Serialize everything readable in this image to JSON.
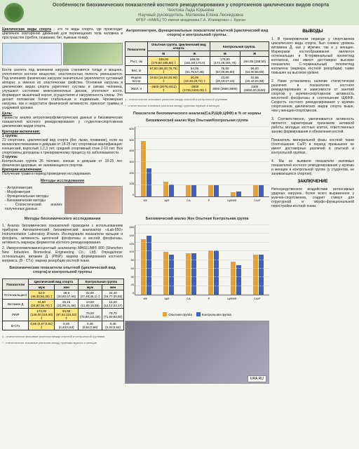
{
  "header": {
    "title": "Особенности биохимических показателей костного ремоделирования у спортсменов циклических видов спорта",
    "author_line": "Чехлова Лада Юрьевна",
    "supervisor": "Научный руководитель: Матвеева Елена Леонидовна",
    "affiliation": "ФГБУ «НМИЦ ТО имени академика Г.А. Илизарова» г. Курган"
  },
  "intro": {
    "def_title": "Циклические виды спорта",
    "def_text": " - это те виды спорта, где происходит цикличное повторение движений для перемещения тела человека в пространстве (гребля, плавание, бег, лыжные гонки).",
    "bone_text": "Кости скелета под влиянием нагрузок становятся толще и мощнее, уплотняется костное вещество, эластичностью полость уменьшается. Под влиянием физических нагрузок значительно укрепляется суставный аппарат, а именно их эластические свойства. Основная нагрузка в циклических видах спорта укрепляют суставы и связки человека, улучшают состояние межпозвоночных дисков, уплотняют кости, формируют мышечный корсет, осуществляя и нагруженность спины. Это делает положение более стабильным и подвижным. Чрезмерная нагрузка, как и недостаток физической активности, приносит травмы и усидчивой хронике."
  },
  "goal": {
    "title": "Цель:",
    "text": "Провести анализ антропоморфометрических данных и биохимических показателей костного ремоделирования у студентов-спортсменов циклических видов спорта."
  },
  "criteria": {
    "title": "Критерии включения:",
    "g1_title": "1 группа:",
    "g1_text": "21 спортсмен, циклический вид спорта (бег, лыжи, плавание), если на великолепствованием и девушки от 18-25 лет, спортивная квалификация: юношеский, взрослый 1,2,3 лет, средний спортивный стаж 2-10 лет. Все спортсмены допущены к тренировочному процессу по заболеваемости.",
    "g2_title": "2 группа:",
    "g2_text": "Контрольная группа 26 человек, юноши и девушки от 18-25 лет. физически здоровые, не занимающиеся спортом.",
    "exc_title": "Критерии исключения:",
    "exc_text": "Получение травм в период проведения исследования."
  },
  "methods": {
    "title": "Методы исследования",
    "items": [
      "Антропометрия",
      "Морфометрия",
      "Функциональные методы",
      "Биохимические методы",
      "Статистический анализ полученных данных"
    ],
    "bio_title": "Методы биохимического исследования",
    "bio1": "1. Анализ биохимических показателей проводили с использованием приборов: Автоматический биохимический анализатор «iLab-650» Instrumentation Laboratory Италия. Исследовали показатели кальция и фосфата, активность щелочной фосфатазы и кислой фосфатазы, активность маркеры ферментов костного ремоделирования.",
    "bio2": "2. Иммунохемилюминесцентный анализатор MAGLUMI® 800 (Shenzhen New Industries Biomedical Engineering Co., Ltd). Определяли: остеокальцин, витамин Д. (PINP): маркер формирования костного матрикса, (B - CTx): маркер резорбции костной ткани."
  },
  "table1": {
    "title": "Биохимические показатели опытной (циклический вид спорта) и контрольной группы",
    "headers": [
      "Показатели",
      "Циклический вид спорта",
      "",
      "Контрольная группа",
      ""
    ],
    "subheaders": [
      "",
      "муж",
      "жен",
      "муж",
      "жен"
    ],
    "rows": [
      [
        "Остеокальцин‡",
        "52,9 (48,30;56,30) ‡",
        "38,9 (33,80;47,60)",
        "32,80 (27,45;35,1) ‡",
        "24,40 (19,77;30,55)"
      ],
      [
        "Витамин Д",
        "34,80 (24,80;36,70) ‡",
        "25,15 (21,95;31,56)",
        "13,50 (11,85;15,55)",
        "16,20 (14,12;24,17)"
      ],
      [
        "PINP",
        "173,00 (149,00;218,00) ‡",
        "94,90 (87,52;116,53) ‡",
        "79,50 (79,80;111,50)",
        "79,70 (71,60;83,50)"
      ],
      [
        "B-CTx",
        "0,86 (0,67;0,94) ‡",
        "0,46 (0,43;0,53)",
        "0,48 (0,54;0,66)",
        "0,40 (0,33;0,54)"
      ]
    ]
  },
  "table2": {
    "title": "Антропометрия, функциональные показатели опытной (циклический вид спорта) и контрольной группы.",
    "headers": [
      "Показатели",
      "Опытная группа. Циклический вид спорта.",
      "",
      "Контрольная группа.",
      ""
    ],
    "subheaders": [
      "",
      "М",
      "Ж",
      "М",
      "Ж"
    ],
    "rows": [
      [
        "Рост, см",
        "185,00 (179,52;185,50) ‡",
        "165,00 (161,50;170,0)",
        "179,00 (172,25;181,75)",
        "164,05 (158;50)"
      ],
      [
        "Вес, кг",
        "67,50 (65,30;79,75) ‡",
        "54,00 (51,75;57,25)",
        "75,50 (67,00;89,50)",
        "56,00 (54,00;65,00)"
      ],
      [
        "Индекс Кетле",
        "19,83 (18,92;20,90) ‡",
        "20,00 (19,30;20,74) ‡",
        "23,00 (20,10;27,44)",
        "22,65 (20,42;24,59)"
      ],
      [
        "ЖЕЛ, л",
        "-4600 (3075;4012) ‡",
        "-3000 (1725;2400,00) ‡",
        "3000 (3650;3900)",
        "2300 (2650,00;3100)"
      ]
    ]
  },
  "footnotes": {
    "f1": "‡ - статистически значимые различия между опытной и контрольной группами",
    "f2": "* - статистически значимые различия между группами мужчин и женщин"
  },
  "chart1": {
    "title": "Показатели биохимического анализа(Са,Р,ЩФ,ЦФФ) в % от нормы",
    "subtitle": "Биохимический анализ Муж Опытная/Контрольная группа",
    "ymax": 600,
    "ystep": 100,
    "categories": [
      "КФ",
      "ЩФ",
      "CA",
      "P",
      "ЩФ/КФ",
      "CA/P"
    ],
    "exp_values": [
      480,
      125,
      100,
      100,
      35,
      98
    ],
    "ctrl_values": [
      240,
      105,
      98,
      100,
      45,
      98
    ]
  },
  "chart2": {
    "subtitle": "Биохимический анализ Жен Опытная/ Контрольная группа",
    "ymax": 160,
    "ystep": 20,
    "categories": [
      "КФ",
      "ЩФ",
      "CA",
      "P",
      "ЩФ/КФ",
      "CA/P"
    ],
    "exp_values": [
      128,
      98,
      95,
      102,
      76,
      92
    ],
    "ctrl_values": [
      135,
      92,
      95,
      102,
      68,
      92
    ]
  },
  "legend": {
    "exp": "Опытная группа",
    "ctrl": "Контрольная группа"
  },
  "conclusions": {
    "title": "ВЫВОДЫ",
    "c1": "1. В тренировочном периоде у спортсменов циклического вида спорта, был снижен уровень витамина Д, как у мужчин, так и у женщин. Маркерами костеобразования являются остеокальцин и N-терминальный пропептид коллагена, они имеют достоверно высокие показатели. С-терминальный телопептид коллагена (маркера костной резорбции) также повышен на высоком уровне.",
    "c2": "2. Нами установлено наличие статистически различия в показателях костного ремоделирования в зависимости от занятий спортом у мужчин-спортсменов: активность кислотной фосфатазы и соотношение ЩФ/КФ. Скорость костного ремоделирования у мужчин спортсменов циклических видов спорта выше, чем у женщин-спортсменов.",
    "c3": "3. Соответственно, увеличивается активность является характерным признаком активной работы молодых костных клеток, ответственных заново формирования и обновления костей.",
    "c4": "Показатель минеральной фазы костной ткани (соотношение Са/Р) в период превышено не имеет достоверных различий в опытной и контрольной группах.",
    "c5": "4. Мы не выявили показатели значимых показателей костного ремоделирования у мужчин и женщин в контрольной группе (у студентов, не занимающихся спортом).",
    "final_title": "ЗАКЛЮЧЕНИЕ",
    "final": "Непосредственное воздействие интенсивных ударных нагрузок, более всего выраженное у мужчин-спортсменов, создает стимул для структурной и морфо-функциональной перестройки костной ткани."
  },
  "ref_tag": "URA.RU"
}
